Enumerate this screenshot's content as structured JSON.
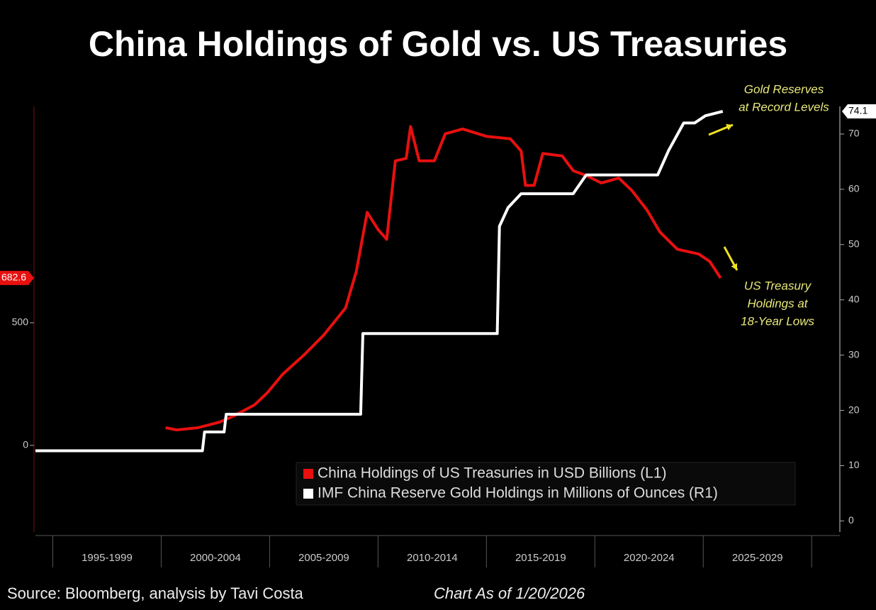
{
  "chart_data": {
    "type": "line",
    "title": "China Holdings of Gold vs. US Treasuries",
    "x_periods": [
      "1995-1999",
      "2000-2004",
      "2005-2009",
      "2010-2014",
      "2015-2019",
      "2020-2024",
      "2025-2029"
    ],
    "xlim": [
      1994.2,
      2031.3
    ],
    "xticks": [
      1995,
      2000,
      2005,
      2010,
      2015,
      2020,
      2025,
      2030
    ],
    "ylim": [
      -353,
      1382
    ],
    "yticks": [
      0,
      500
    ],
    "y2lim": [
      -2,
      75
    ],
    "y2ticks": [
      0,
      10,
      20,
      30,
      40,
      50,
      60,
      70
    ],
    "legend": "lower right",
    "series": [
      {
        "name": "China Holdings of US Treasuries in USD Billions (L1)",
        "color": "#e8100f",
        "axis": "y",
        "x": [
          2000.2,
          2000.7,
          2001.7,
          2002.7,
          2003.3,
          2004.3,
          2004.9,
          2005.6,
          2006.6,
          2007.5,
          2008.5,
          2009.0,
          2009.5,
          2010.0,
          2010.4,
          2010.8,
          2011.3,
          2011.5,
          2011.9,
          2012.6,
          2013.1,
          2013.9,
          2015.0,
          2016.1,
          2016.6,
          2016.8,
          2017.2,
          2017.6,
          2018.5,
          2019.0,
          2019.6,
          2020.3,
          2021.1,
          2021.7,
          2022.4,
          2023.0,
          2023.8,
          2024.8,
          2025.3,
          2025.8
        ],
        "values": [
          72,
          63,
          72,
          95,
          118,
          165,
          215,
          290,
          370,
          450,
          560,
          710,
          950,
          880,
          840,
          1160,
          1170,
          1300,
          1160,
          1160,
          1270,
          1290,
          1260,
          1250,
          1200,
          1060,
          1060,
          1190,
          1180,
          1120,
          1100,
          1070,
          1090,
          1040,
          960,
          870,
          800,
          780,
          750,
          682.6
        ]
      },
      {
        "name": "IMF China Reserve Gold Holdings in Millions of Ounces (R1)",
        "color": "#ffffff",
        "axis": "y2",
        "x": [
          1994.2,
          2001.9,
          2002.0,
          2002.9,
          2003.0,
          2009.2,
          2009.3,
          2015.5,
          2015.6,
          2016.0,
          2016.6,
          2019.0,
          2019.6,
          2022.9,
          2023.4,
          2024.1,
          2024.6,
          2025.1,
          2025.9
        ],
        "values": [
          12.7,
          12.7,
          16.1,
          16.1,
          19.3,
          19.3,
          33.9,
          33.9,
          53.3,
          56.7,
          59.2,
          59.2,
          62.6,
          62.6,
          67,
          72,
          72,
          73.3,
          74.1
        ]
      }
    ],
    "annotations": [
      {
        "lines": [
          "Gold Reserves",
          "at Record Levels"
        ]
      },
      {
        "lines": [
          "US Treasury",
          "Holdings at",
          "18-Year Lows"
        ]
      }
    ],
    "source": "Source: Bloomberg, analysis by Tavi Costa",
    "note": "Chart As of 1/20/2026"
  }
}
